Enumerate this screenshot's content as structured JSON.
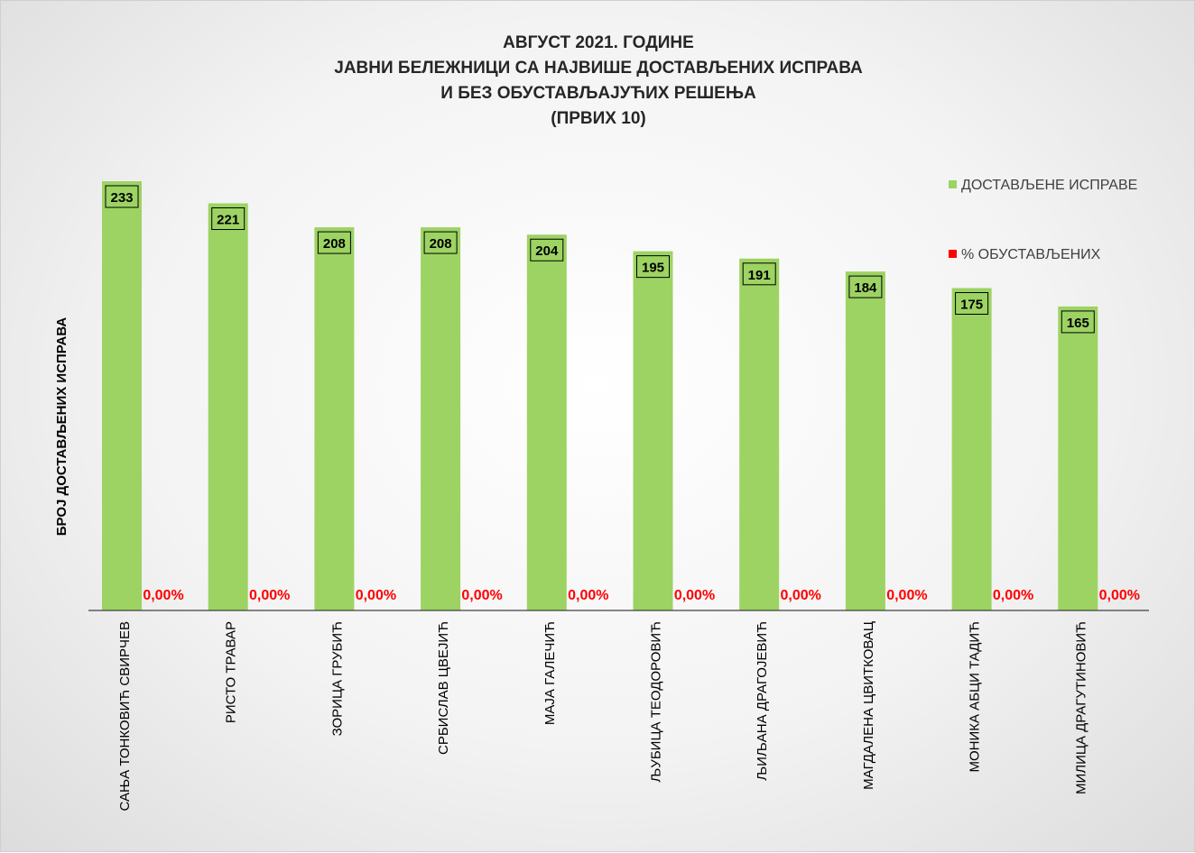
{
  "chart_data": {
    "type": "bar",
    "title_lines": [
      "АВГУСТ 2021. ГОДИНЕ",
      "ЈАВНИ БЕЛЕЖНИЦИ СА НАЈВИШЕ ДОСТАВЉЕНИХ ИСПРАВА",
      "И БЕЗ ОБУСТАВЉАЈУЋИХ РЕШЕЊА",
      "(ПРВИХ 10)"
    ],
    "ylabel": "БРОЈ ДОСТАВЉЕНИХ ИСПРАВА",
    "xlabel": "",
    "ylim": [
      0,
      245
    ],
    "grid": false,
    "legend_position": "top-right",
    "categories": [
      "САЊА ТОНКОВИЋ СВИРЧЕВ",
      "РИСТО ТРАВАР",
      "ЗОРИЦА ГРУБИЋ",
      "СРБИСЛАВ ЦВЕЈИЋ",
      "МАЈА ГАЛЕЧИЋ",
      "ЉУБИЦА ТЕОДОРОВИЋ",
      "ЉИЉАНА ДРАГОЈЕВИЋ",
      "МАГДАЛЕНА ЦВИТКОВАЦ",
      "МОНИКА АБЦИ ТАДИЋ",
      "МИЛИЦА ДРАГУТИНОВИЋ"
    ],
    "series": [
      {
        "name": "ДОСТАВЉЕНЕ ИСПРАВЕ",
        "color": "#9dd363",
        "values": [
          233,
          221,
          208,
          208,
          204,
          195,
          191,
          184,
          175,
          165
        ],
        "labels": [
          "233",
          "221",
          "208",
          "208",
          "204",
          "195",
          "191",
          "184",
          "175",
          "165"
        ]
      },
      {
        "name": "% ОБУСТАВЉЕНИХ",
        "color": "#ff0000",
        "values": [
          0,
          0,
          0,
          0,
          0,
          0,
          0,
          0,
          0,
          0
        ],
        "labels": [
          "0,00%",
          "0,00%",
          "0,00%",
          "0,00%",
          "0,00%",
          "0,00%",
          "0,00%",
          "0,00%",
          "0,00%",
          "0,00%"
        ]
      }
    ]
  }
}
